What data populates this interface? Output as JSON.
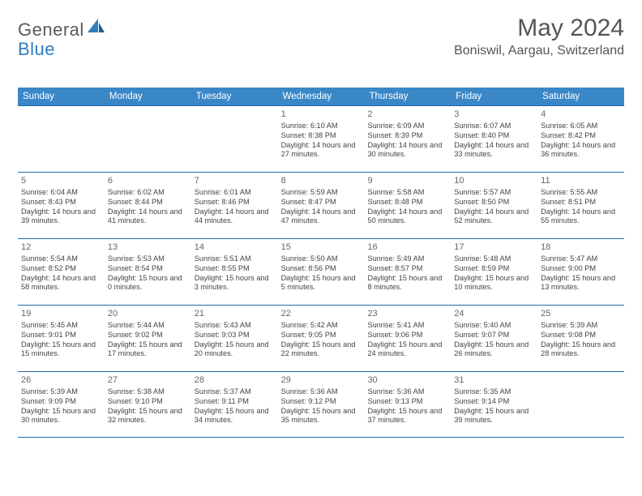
{
  "logo": {
    "word1": "General",
    "word2": "Blue"
  },
  "title": "May 2024",
  "location": "Boniswil, Aargau, Switzerland",
  "colors": {
    "header_bg": "#3a87c8",
    "border": "#246aa6",
    "text": "#444444",
    "title_text": "#555555",
    "logo_gray": "#5a5a5a",
    "logo_blue": "#2d7dc0"
  },
  "day_headers": [
    "Sunday",
    "Monday",
    "Tuesday",
    "Wednesday",
    "Thursday",
    "Friday",
    "Saturday"
  ],
  "weeks": [
    [
      {
        "n": "",
        "lines": []
      },
      {
        "n": "",
        "lines": []
      },
      {
        "n": "",
        "lines": []
      },
      {
        "n": "1",
        "lines": [
          "Sunrise: 6:10 AM",
          "Sunset: 8:38 PM",
          "Daylight: 14 hours and 27 minutes."
        ]
      },
      {
        "n": "2",
        "lines": [
          "Sunrise: 6:09 AM",
          "Sunset: 8:39 PM",
          "Daylight: 14 hours and 30 minutes."
        ]
      },
      {
        "n": "3",
        "lines": [
          "Sunrise: 6:07 AM",
          "Sunset: 8:40 PM",
          "Daylight: 14 hours and 33 minutes."
        ]
      },
      {
        "n": "4",
        "lines": [
          "Sunrise: 6:05 AM",
          "Sunset: 8:42 PM",
          "Daylight: 14 hours and 36 minutes."
        ]
      }
    ],
    [
      {
        "n": "5",
        "lines": [
          "Sunrise: 6:04 AM",
          "Sunset: 8:43 PM",
          "Daylight: 14 hours and 39 minutes."
        ]
      },
      {
        "n": "6",
        "lines": [
          "Sunrise: 6:02 AM",
          "Sunset: 8:44 PM",
          "Daylight: 14 hours and 41 minutes."
        ]
      },
      {
        "n": "7",
        "lines": [
          "Sunrise: 6:01 AM",
          "Sunset: 8:46 PM",
          "Daylight: 14 hours and 44 minutes."
        ]
      },
      {
        "n": "8",
        "lines": [
          "Sunrise: 5:59 AM",
          "Sunset: 8:47 PM",
          "Daylight: 14 hours and 47 minutes."
        ]
      },
      {
        "n": "9",
        "lines": [
          "Sunrise: 5:58 AM",
          "Sunset: 8:48 PM",
          "Daylight: 14 hours and 50 minutes."
        ]
      },
      {
        "n": "10",
        "lines": [
          "Sunrise: 5:57 AM",
          "Sunset: 8:50 PM",
          "Daylight: 14 hours and 52 minutes."
        ]
      },
      {
        "n": "11",
        "lines": [
          "Sunrise: 5:55 AM",
          "Sunset: 8:51 PM",
          "Daylight: 14 hours and 55 minutes."
        ]
      }
    ],
    [
      {
        "n": "12",
        "lines": [
          "Sunrise: 5:54 AM",
          "Sunset: 8:52 PM",
          "Daylight: 14 hours and 58 minutes."
        ]
      },
      {
        "n": "13",
        "lines": [
          "Sunrise: 5:53 AM",
          "Sunset: 8:54 PM",
          "Daylight: 15 hours and 0 minutes."
        ]
      },
      {
        "n": "14",
        "lines": [
          "Sunrise: 5:51 AM",
          "Sunset: 8:55 PM",
          "Daylight: 15 hours and 3 minutes."
        ]
      },
      {
        "n": "15",
        "lines": [
          "Sunrise: 5:50 AM",
          "Sunset: 8:56 PM",
          "Daylight: 15 hours and 5 minutes."
        ]
      },
      {
        "n": "16",
        "lines": [
          "Sunrise: 5:49 AM",
          "Sunset: 8:57 PM",
          "Daylight: 15 hours and 8 minutes."
        ]
      },
      {
        "n": "17",
        "lines": [
          "Sunrise: 5:48 AM",
          "Sunset: 8:59 PM",
          "Daylight: 15 hours and 10 minutes."
        ]
      },
      {
        "n": "18",
        "lines": [
          "Sunrise: 5:47 AM",
          "Sunset: 9:00 PM",
          "Daylight: 15 hours and 13 minutes."
        ]
      }
    ],
    [
      {
        "n": "19",
        "lines": [
          "Sunrise: 5:45 AM",
          "Sunset: 9:01 PM",
          "Daylight: 15 hours and 15 minutes."
        ]
      },
      {
        "n": "20",
        "lines": [
          "Sunrise: 5:44 AM",
          "Sunset: 9:02 PM",
          "Daylight: 15 hours and 17 minutes."
        ]
      },
      {
        "n": "21",
        "lines": [
          "Sunrise: 5:43 AM",
          "Sunset: 9:03 PM",
          "Daylight: 15 hours and 20 minutes."
        ]
      },
      {
        "n": "22",
        "lines": [
          "Sunrise: 5:42 AM",
          "Sunset: 9:05 PM",
          "Daylight: 15 hours and 22 minutes."
        ]
      },
      {
        "n": "23",
        "lines": [
          "Sunrise: 5:41 AM",
          "Sunset: 9:06 PM",
          "Daylight: 15 hours and 24 minutes."
        ]
      },
      {
        "n": "24",
        "lines": [
          "Sunrise: 5:40 AM",
          "Sunset: 9:07 PM",
          "Daylight: 15 hours and 26 minutes."
        ]
      },
      {
        "n": "25",
        "lines": [
          "Sunrise: 5:39 AM",
          "Sunset: 9:08 PM",
          "Daylight: 15 hours and 28 minutes."
        ]
      }
    ],
    [
      {
        "n": "26",
        "lines": [
          "Sunrise: 5:39 AM",
          "Sunset: 9:09 PM",
          "Daylight: 15 hours and 30 minutes."
        ]
      },
      {
        "n": "27",
        "lines": [
          "Sunrise: 5:38 AM",
          "Sunset: 9:10 PM",
          "Daylight: 15 hours and 32 minutes."
        ]
      },
      {
        "n": "28",
        "lines": [
          "Sunrise: 5:37 AM",
          "Sunset: 9:11 PM",
          "Daylight: 15 hours and 34 minutes."
        ]
      },
      {
        "n": "29",
        "lines": [
          "Sunrise: 5:36 AM",
          "Sunset: 9:12 PM",
          "Daylight: 15 hours and 35 minutes."
        ]
      },
      {
        "n": "30",
        "lines": [
          "Sunrise: 5:36 AM",
          "Sunset: 9:13 PM",
          "Daylight: 15 hours and 37 minutes."
        ]
      },
      {
        "n": "31",
        "lines": [
          "Sunrise: 5:35 AM",
          "Sunset: 9:14 PM",
          "Daylight: 15 hours and 39 minutes."
        ]
      },
      {
        "n": "",
        "lines": []
      }
    ]
  ]
}
